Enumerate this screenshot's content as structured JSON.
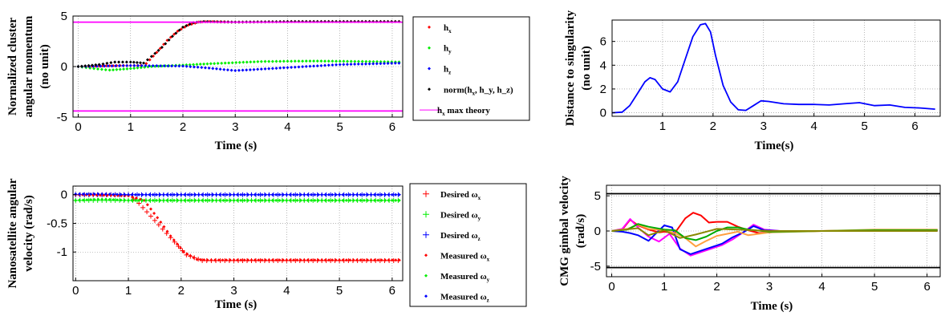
{
  "chart_data": [
    {
      "type": "scatter",
      "xlabel": "Time (s)",
      "ylabel": [
        "Normalized cluster",
        "angular momentum",
        "(no unit)"
      ],
      "xlim": [
        -0.1,
        6.2
      ],
      "ylim": [
        -5,
        5
      ],
      "xticks": [
        0,
        1,
        2,
        3,
        4,
        5,
        6
      ],
      "yticks": [
        -5,
        0,
        5
      ],
      "grid": true,
      "legend_position": "right-outside",
      "series": [
        {
          "name": "h_x",
          "color": "#ff0000",
          "marker": "dot",
          "x": [
            0,
            0.4,
            0.8,
            1.2,
            1.3,
            1.5,
            1.7,
            1.9,
            2.1,
            2.3,
            2.5,
            3,
            4,
            5,
            6.2
          ],
          "y": [
            0,
            0.05,
            0.1,
            0.1,
            0.3,
            1.4,
            2.6,
            3.5,
            4.1,
            4.4,
            4.45,
            4.4,
            4.45,
            4.45,
            4.45
          ]
        },
        {
          "name": "h_y",
          "color": "#00ee00",
          "marker": "dot",
          "x": [
            0,
            0.3,
            0.6,
            1.0,
            1.4,
            2.0,
            2.6,
            3.5,
            4.5,
            5.5,
            6.2
          ],
          "y": [
            0,
            -0.2,
            -0.35,
            -0.2,
            0,
            0.15,
            0.3,
            0.5,
            0.55,
            0.5,
            0.45
          ]
        },
        {
          "name": "h_z",
          "color": "#0000ff",
          "marker": "dot",
          "x": [
            0,
            1.0,
            2.0,
            2.5,
            3.0,
            4.0,
            5.0,
            6.2
          ],
          "y": [
            0,
            0.1,
            0.05,
            -0.15,
            -0.4,
            -0.1,
            0.2,
            0.35
          ]
        },
        {
          "name": "norm(h_x, h_y, h_z)",
          "color": "#000000",
          "marker": "dot",
          "x": [
            0,
            0.4,
            0.7,
            1.0,
            1.25,
            1.4,
            1.6,
            1.8,
            2.0,
            2.2,
            2.4,
            3,
            4,
            5,
            6.2
          ],
          "y": [
            0,
            0.2,
            0.45,
            0.45,
            0.35,
            1.0,
            1.9,
            3.0,
            3.9,
            4.35,
            4.45,
            4.4,
            4.45,
            4.45,
            4.45
          ]
        },
        {
          "name": "h_x max theory",
          "color": "#ff00ff",
          "marker": "line",
          "x": [
            -0.1,
            6.2
          ],
          "y": [
            4.4,
            4.4
          ]
        },
        {
          "name": "",
          "color": "#ff00ff",
          "marker": "line",
          "x": [
            -0.1,
            6.2
          ],
          "y": [
            -4.4,
            -4.4
          ]
        }
      ],
      "legend": [
        {
          "base": "h",
          "sub": "x",
          "rest": ""
        },
        {
          "base": "h",
          "sub": "y",
          "rest": ""
        },
        {
          "base": "h",
          "sub": "z",
          "rest": ""
        },
        {
          "base": "norm(h",
          "sub": "x",
          "rest": ", h_y, h_z)"
        },
        {
          "base": "h",
          "sub": "x",
          "rest": " max theory"
        }
      ]
    },
    {
      "type": "line",
      "xlabel": "Time(s)",
      "ylabel": [
        "Distance to singularity",
        "(no unit)"
      ],
      "xlim": [
        0,
        6.5
      ],
      "ylim": [
        -0.3,
        7.8
      ],
      "xticks": [
        1,
        2,
        3,
        4,
        5,
        6
      ],
      "yticks": [
        0,
        2,
        4,
        6
      ],
      "grid": true,
      "series": [
        {
          "name": "",
          "color": "#0000ff",
          "x": [
            0,
            0.2,
            0.35,
            0.5,
            0.65,
            0.75,
            0.85,
            1.0,
            1.15,
            1.3,
            1.45,
            1.6,
            1.75,
            1.85,
            1.95,
            2.05,
            2.2,
            2.35,
            2.5,
            2.65,
            2.8,
            2.95,
            3.1,
            3.4,
            3.7,
            4.0,
            4.3,
            4.6,
            4.9,
            5.2,
            5.5,
            5.8,
            6.1,
            6.4
          ],
          "y": [
            0,
            0.05,
            0.6,
            1.6,
            2.6,
            2.95,
            2.8,
            2.0,
            1.75,
            2.6,
            4.5,
            6.4,
            7.4,
            7.5,
            6.8,
            4.8,
            2.3,
            0.9,
            0.25,
            0.2,
            0.6,
            1.0,
            0.95,
            0.75,
            0.7,
            0.7,
            0.65,
            0.75,
            0.85,
            0.6,
            0.65,
            0.45,
            0.4,
            0.3
          ]
        }
      ]
    },
    {
      "type": "scatter",
      "xlabel": "Time (s)",
      "ylabel": [
        "Nanosatellite angular",
        "velocity (rad/s)"
      ],
      "xlim": [
        -0.05,
        6.2
      ],
      "ylim": [
        -1.5,
        0.15
      ],
      "xticks": [
        0,
        1,
        2,
        3,
        4,
        5,
        6
      ],
      "yticks": [
        0,
        -0.5,
        -1
      ],
      "grid": true,
      "legend_position": "right-outside",
      "series": [
        {
          "name": "Desired ωx",
          "color": "#ff0000",
          "marker": "plus",
          "x": [
            0,
            1.0,
            1.2,
            1.5,
            1.8,
            2.1,
            2.4,
            3,
            4,
            5,
            6.2
          ],
          "y": [
            0,
            0,
            -0.15,
            -0.45,
            -0.75,
            -1.05,
            -1.15,
            -1.15,
            -1.15,
            -1.15,
            -1.15
          ]
        },
        {
          "name": "Desired ωy",
          "color": "#00ee00",
          "marker": "plus",
          "x": [
            0,
            1,
            2,
            3,
            4,
            5,
            6.2
          ],
          "y": [
            -0.1,
            -0.1,
            -0.1,
            -0.1,
            -0.1,
            -0.1,
            -0.1
          ]
        },
        {
          "name": "Desired ωz",
          "color": "#0000ff",
          "marker": "plus",
          "x": [
            0,
            1,
            2,
            3,
            4,
            5,
            6.2
          ],
          "y": [
            0,
            0,
            0,
            0,
            0,
            0,
            0
          ]
        },
        {
          "name": "Measured ωx",
          "color": "#ff0000",
          "marker": "dot",
          "x": [
            0,
            1.0,
            1.3,
            1.55,
            1.8,
            2.05,
            2.3,
            2.5,
            3,
            4,
            5,
            6.2
          ],
          "y": [
            0,
            -0.02,
            -0.1,
            -0.4,
            -0.72,
            -1.0,
            -1.13,
            -1.14,
            -1.14,
            -1.14,
            -1.14,
            -1.14
          ]
        },
        {
          "name": "Measured ωy",
          "color": "#00ee00",
          "marker": "dot",
          "x": [
            0,
            0.5,
            1,
            2,
            3,
            4,
            5,
            6.2
          ],
          "y": [
            -0.1,
            -0.08,
            -0.1,
            -0.1,
            -0.1,
            -0.1,
            -0.1,
            -0.1
          ]
        },
        {
          "name": "Measured ωz",
          "color": "#0000ff",
          "marker": "dot",
          "x": [
            0,
            0.5,
            1,
            2,
            3,
            4,
            5,
            6.2
          ],
          "y": [
            0.01,
            0.01,
            0,
            0,
            0,
            0,
            0,
            0
          ]
        }
      ],
      "legend": [
        {
          "base": "Desired ω",
          "sub": "x"
        },
        {
          "base": "Desired ω",
          "sub": "y"
        },
        {
          "base": "Desired ω",
          "sub": "z"
        },
        {
          "base": "Measured ω",
          "sub": "x"
        },
        {
          "base": "Measured ω",
          "sub": "y"
        },
        {
          "base": "Measured ω",
          "sub": "z"
        }
      ]
    },
    {
      "type": "line",
      "xlabel": "Time (s)",
      "ylabel": [
        "CMG gimbal velocity",
        "(rad/s)"
      ],
      "xlim": [
        -0.1,
        6.25
      ],
      "ylim": [
        -6.5,
        6.5
      ],
      "xticks": [
        0,
        1,
        2,
        3,
        4,
        5,
        6
      ],
      "yticks": [
        5,
        0,
        -5
      ],
      "grid": true,
      "series": [
        {
          "name": "",
          "color": "#ff0000",
          "x": [
            0,
            0.2,
            0.35,
            0.5,
            0.7,
            0.9,
            1.0,
            1.2,
            1.4,
            1.55,
            1.7,
            1.85,
            2.0,
            2.2,
            2.4,
            2.6,
            2.8,
            3.2,
            4,
            5,
            6.2
          ],
          "y": [
            0,
            0.2,
            1.6,
            0.8,
            0.2,
            -0.2,
            -0.1,
            -0.3,
            1.8,
            2.6,
            2.2,
            1.2,
            1.3,
            1.3,
            0.6,
            0.1,
            -0.3,
            -0.1,
            0,
            0.1,
            0.1
          ]
        },
        {
          "name": "",
          "color": "#ff00ff",
          "x": [
            0,
            0.2,
            0.35,
            0.5,
            0.7,
            0.9,
            1.1,
            1.3,
            1.5,
            1.7,
            1.9,
            2.1,
            2.3,
            2.5,
            2.7,
            2.9,
            3.2,
            4,
            5,
            6.2
          ],
          "y": [
            0,
            0.3,
            1.7,
            0.5,
            -0.8,
            -1.5,
            -0.4,
            -2.5,
            -3.5,
            -3.0,
            -2.5,
            -2.0,
            -1.2,
            -0.2,
            0.9,
            0.2,
            0,
            0,
            0,
            0
          ]
        },
        {
          "name": "",
          "color": "#0000ff",
          "x": [
            0,
            0.2,
            0.35,
            0.5,
            0.7,
            0.85,
            1.0,
            1.15,
            1.3,
            1.5,
            1.7,
            1.9,
            2.1,
            2.3,
            2.5,
            2.7,
            2.9,
            3.2,
            4,
            5,
            6.2
          ],
          "y": [
            0,
            -0.1,
            -0.3,
            -0.6,
            -1.4,
            -0.3,
            0.8,
            0.5,
            -2.6,
            -3.3,
            -2.8,
            -2.3,
            -1.8,
            -0.9,
            -0.2,
            0.7,
            0.1,
            0,
            0,
            0,
            0.1
          ]
        },
        {
          "name": "",
          "color": "#ffa040",
          "x": [
            0,
            0.3,
            0.5,
            0.7,
            1.0,
            1.2,
            1.4,
            1.6,
            1.8,
            2.0,
            2.2,
            2.4,
            2.6,
            3.0,
            4,
            5,
            6.2
          ],
          "y": [
            0,
            0.3,
            0.9,
            0.3,
            0.1,
            -0.3,
            -1.0,
            -2.2,
            -1.4,
            -0.7,
            -0.4,
            -0.1,
            -0.6,
            -0.2,
            0,
            0.2,
            0.2
          ]
        },
        {
          "name": "",
          "color": "#00aa00",
          "x": [
            0,
            0.3,
            0.5,
            0.7,
            1.0,
            1.2,
            1.4,
            1.6,
            1.8,
            2.0,
            2.2,
            2.4,
            2.6,
            3.0,
            4,
            5,
            6.2
          ],
          "y": [
            0,
            0.2,
            1.0,
            0.6,
            0.2,
            0.1,
            -1.0,
            -1.3,
            -0.8,
            0,
            0.5,
            0.5,
            0.2,
            -0.1,
            0,
            0.1,
            0.1
          ]
        },
        {
          "name": "",
          "color": "#888800",
          "x": [
            0,
            0.5,
            0.7,
            1.0,
            1.3,
            1.6,
            2.0,
            2.4,
            3.0,
            4,
            5,
            6.2
          ],
          "y": [
            0,
            0.4,
            -0.6,
            0.1,
            -1.0,
            -0.5,
            0.3,
            0.2,
            0,
            0,
            0,
            0
          ]
        },
        {
          "name": "",
          "color": "#000000",
          "x": [
            -0.1,
            6.25
          ],
          "y": [
            5.3,
            5.3
          ]
        },
        {
          "name": "",
          "color": "#000000",
          "x": [
            -0.1,
            6.25
          ],
          "y": [
            -5.2,
            -5.2
          ]
        }
      ]
    }
  ]
}
